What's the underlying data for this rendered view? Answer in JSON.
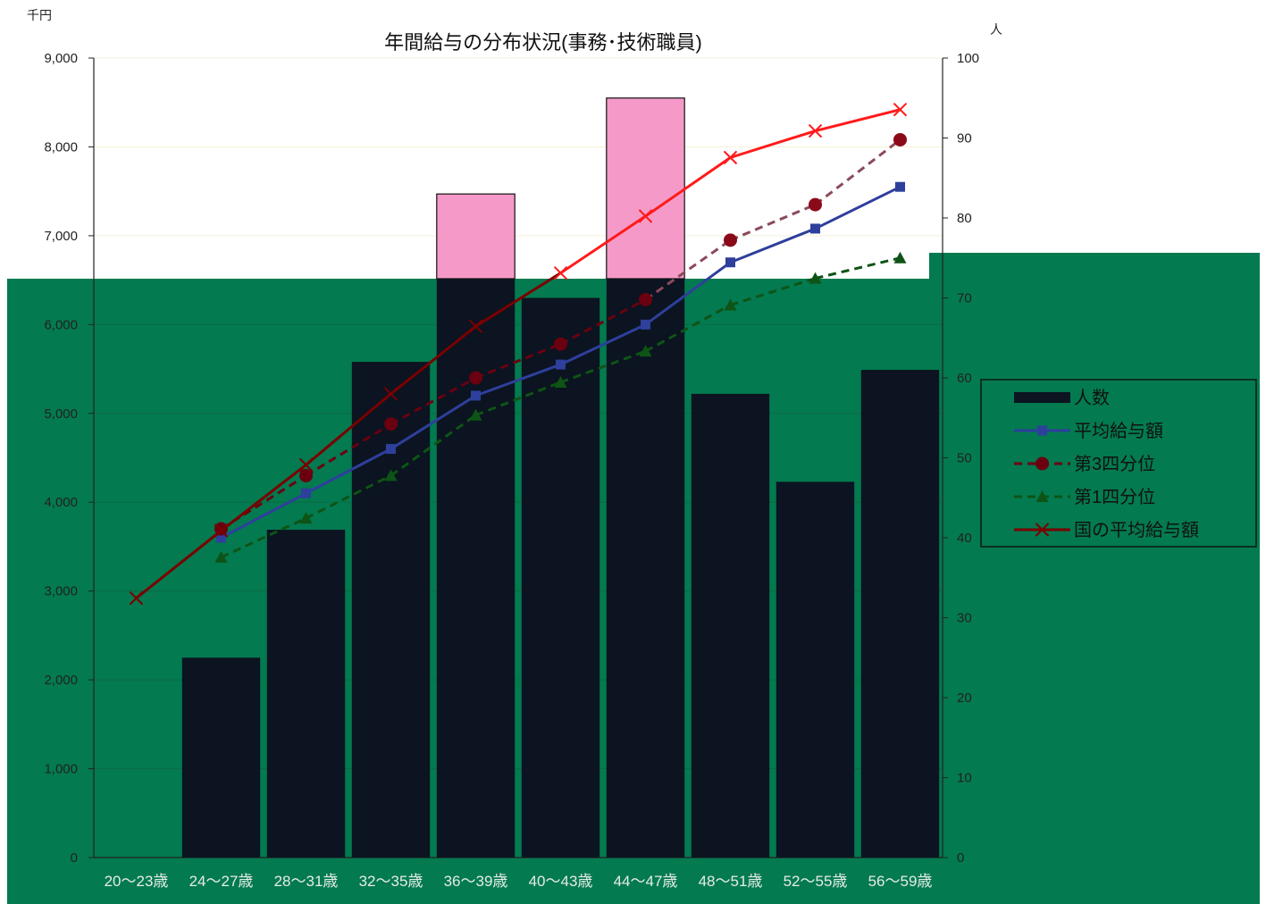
{
  "chart_data": {
    "type": "bar",
    "title": "年間給与の分布状況(事務･技術職員)",
    "left_unit": "千円",
    "right_unit": "人",
    "categories": [
      "20～23歳",
      "24～27歳",
      "28～31歳",
      "32～35歳",
      "36～39歳",
      "40～43歳",
      "44～47歳",
      "48～51歳",
      "52～55歳",
      "56～59歳"
    ],
    "left_axis": {
      "min": 0,
      "max": 9000,
      "step": 1000,
      "tick_labels": [
        "0",
        "1,000",
        "2,000",
        "3,000",
        "4,000",
        "5,000",
        "6,000",
        "7,000",
        "8,000",
        "9,000"
      ]
    },
    "right_axis": {
      "min": 0,
      "max": 100,
      "step": 10,
      "tick_labels": [
        "0",
        "10",
        "20",
        "30",
        "40",
        "50",
        "60",
        "70",
        "80",
        "90",
        "100"
      ]
    },
    "bars": {
      "name": "人数",
      "axis": "right",
      "values": [
        0,
        25,
        41,
        62,
        83,
        70,
        95,
        58,
        47,
        61
      ]
    },
    "series": [
      {
        "name": "平均給与額",
        "axis": "left",
        "values": [
          null,
          3600,
          4100,
          4600,
          5200,
          5550,
          6000,
          6700,
          7080,
          7550
        ]
      },
      {
        "name": "第3四分位",
        "axis": "left",
        "values": [
          null,
          3700,
          4300,
          4880,
          5400,
          5780,
          6280,
          6950,
          7350,
          8080
        ]
      },
      {
        "name": "第1四分位",
        "axis": "left",
        "values": [
          null,
          3380,
          3820,
          4300,
          4980,
          5350,
          5700,
          6220,
          6520,
          6750
        ]
      },
      {
        "name": "国の平均給与額",
        "axis": "left",
        "values": [
          2920,
          3680,
          4420,
          5220,
          5980,
          6580,
          7220,
          7880,
          8180,
          8420
        ]
      }
    ],
    "colors": {
      "plot_background": "#037a4f",
      "bar_fill": "#0b1420",
      "bar_top_fill": "#f59ac8",
      "avg": "#2e3f9c",
      "q3": "#6a0010",
      "q1": "#0e5416",
      "national": "#7a0000",
      "national_upper": "#ff1a1a"
    },
    "legend": {
      "position": "right"
    }
  }
}
